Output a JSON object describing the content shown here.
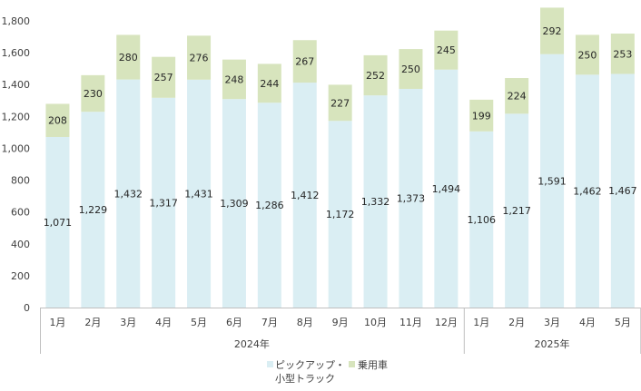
{
  "chart_data": {
    "type": "bar",
    "stacked": true,
    "categories": [
      "1月",
      "2月",
      "3月",
      "4月",
      "5月",
      "6月",
      "7月",
      "8月",
      "9月",
      "10月",
      "11月",
      "12月",
      "1月",
      "2月",
      "3月",
      "4月",
      "5月"
    ],
    "groups": [
      {
        "label": "2024年",
        "count": 12
      },
      {
        "label": "2025年",
        "count": 5
      }
    ],
    "series": [
      {
        "name": "ピックアップ・\n小型トラック",
        "color": "#daeef3",
        "values": [
          1071,
          1229,
          1432,
          1317,
          1431,
          1309,
          1286,
          1412,
          1172,
          1332,
          1373,
          1494,
          1106,
          1217,
          1591,
          1462,
          1467
        ]
      },
      {
        "name": "乗用車",
        "color": "#d7e4bd",
        "values": [
          208,
          230,
          280,
          257,
          276,
          248,
          244,
          267,
          227,
          252,
          250,
          245,
          199,
          224,
          292,
          250,
          253
        ]
      }
    ],
    "ylim": [
      0,
      1800
    ],
    "yticks": [
      0,
      200,
      400,
      600,
      800,
      1000,
      1200,
      1400,
      1600,
      1800
    ],
    "grid": false,
    "legend_position": "bottom",
    "title": "",
    "xlabel": "",
    "ylabel": ""
  }
}
